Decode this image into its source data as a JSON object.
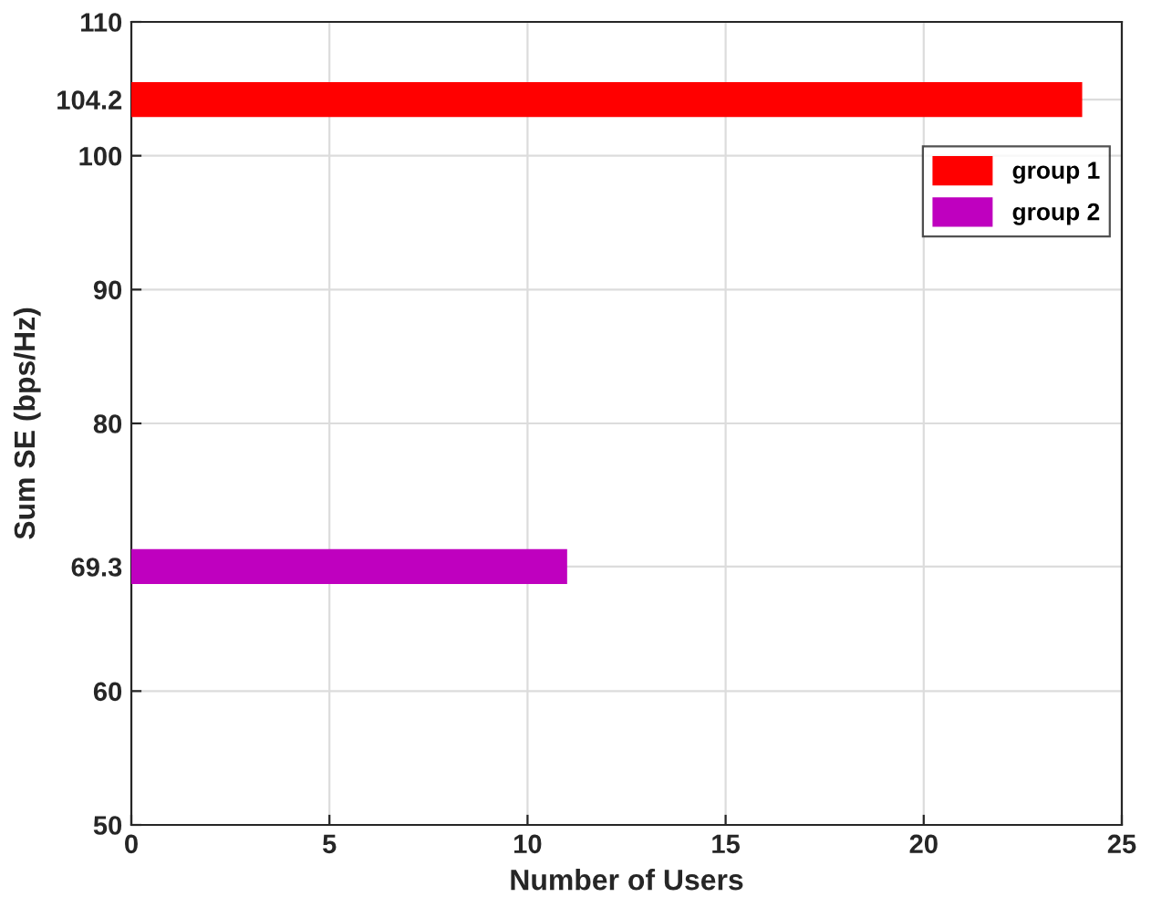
{
  "chart_data": {
    "type": "bar",
    "orientation": "horizontal",
    "xlabel": "Number of Users",
    "ylabel": "Sum SE (bps/Hz)",
    "series": [
      {
        "name": "group 1",
        "color": "#ff0000",
        "x": [
          104.2
        ],
        "values": [
          24
        ]
      },
      {
        "name": "group 2",
        "color": "#bf00bf",
        "x": [
          69.3
        ],
        "values": [
          11
        ]
      }
    ],
    "xlim": [
      0,
      25
    ],
    "xticks": [
      0,
      5,
      10,
      15,
      20,
      25
    ],
    "ylim": [
      50,
      110
    ],
    "yticks": [
      50,
      60,
      69.3,
      80,
      90,
      100,
      104.2,
      110
    ],
    "grid": true,
    "legend": "top right"
  }
}
